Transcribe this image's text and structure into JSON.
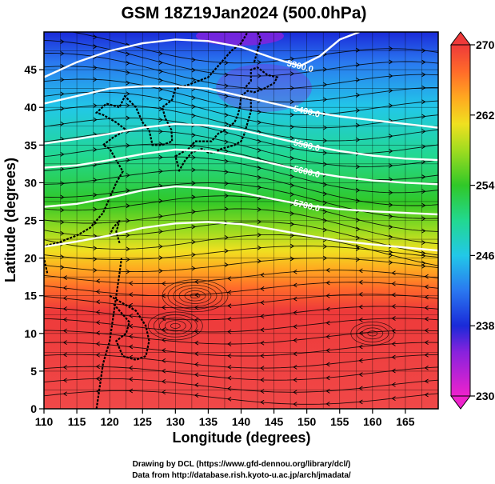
{
  "title": "GSM 18Z19Jan2024 (500.0hPa)",
  "xlabel": "Longitude (degrees)",
  "ylabel": "Latitude  (degrees)",
  "credits": [
    "Drawing by DCL (https://www.gfd-dennou.org/library/dcl/)",
    "Data from http://database.rish.kyoto-u.ac.jp/arch/jmadata/"
  ],
  "x_ticks": [
    110,
    115,
    120,
    125,
    130,
    135,
    140,
    145,
    150,
    155,
    160,
    165
  ],
  "y_ticks": [
    0,
    5,
    10,
    15,
    20,
    25,
    30,
    35,
    40,
    45
  ],
  "colorbar": {
    "ticks": [
      230,
      238,
      246,
      254,
      262,
      270
    ],
    "range": [
      230,
      270
    ],
    "stops": [
      {
        "v": 230,
        "c": "#ee22cc"
      },
      {
        "v": 235,
        "c": "#8822dd"
      },
      {
        "v": 238,
        "c": "#1a2ad8"
      },
      {
        "v": 242,
        "c": "#2a78f0"
      },
      {
        "v": 246,
        "c": "#22c8e8"
      },
      {
        "v": 250,
        "c": "#22d890"
      },
      {
        "v": 254,
        "c": "#30c828"
      },
      {
        "v": 258,
        "c": "#a0dc20"
      },
      {
        "v": 261,
        "c": "#f0e020"
      },
      {
        "v": 264,
        "c": "#ffa820"
      },
      {
        "v": 267,
        "c": "#ff6a2a"
      },
      {
        "v": 270,
        "c": "#ee3a3a"
      }
    ]
  },
  "contour_labels": [
    "5300.0",
    "5400.0",
    "5500.0",
    "5600.0",
    "5700.0"
  ],
  "map": {
    "lon_range": [
      110,
      170
    ],
    "lat_range": [
      0,
      50
    ],
    "contours": [
      {
        "label": "5300.0",
        "pts": [
          [
            110,
            44
          ],
          [
            115,
            46
          ],
          [
            120,
            47.5
          ],
          [
            125,
            48.5
          ],
          [
            130,
            49
          ],
          [
            135,
            48.8
          ],
          [
            140,
            48
          ],
          [
            145,
            46.5
          ],
          [
            149,
            45.5
          ],
          [
            152,
            46.8
          ],
          [
            155,
            49
          ],
          [
            158,
            50
          ]
        ]
      },
      {
        "label": "5400.0",
        "pts": [
          [
            110,
            40.5
          ],
          [
            115,
            41.5
          ],
          [
            120,
            42.5
          ],
          [
            125,
            42.8
          ],
          [
            130,
            42.8
          ],
          [
            135,
            42.5
          ],
          [
            140,
            41.5
          ],
          [
            145,
            40.5
          ],
          [
            150,
            39.5
          ],
          [
            155,
            38.8
          ],
          [
            160,
            38.3
          ],
          [
            165,
            37.8
          ],
          [
            170,
            37.3
          ]
        ]
      },
      {
        "label": "5500.0",
        "pts": [
          [
            110,
            35.2
          ],
          [
            115,
            35.8
          ],
          [
            120,
            36.5
          ],
          [
            125,
            37.3
          ],
          [
            130,
            37.8
          ],
          [
            135,
            37.6
          ],
          [
            140,
            37
          ],
          [
            145,
            36
          ],
          [
            150,
            35
          ],
          [
            155,
            34.2
          ],
          [
            160,
            33.6
          ],
          [
            165,
            33.2
          ],
          [
            170,
            33
          ]
        ]
      },
      {
        "label": "5600.0",
        "pts": [
          [
            110,
            32
          ],
          [
            115,
            32.3
          ],
          [
            120,
            33
          ],
          [
            125,
            33.8
          ],
          [
            130,
            34.4
          ],
          [
            135,
            34.2
          ],
          [
            140,
            33.5
          ],
          [
            145,
            32.5
          ],
          [
            150,
            31.5
          ],
          [
            155,
            30.8
          ],
          [
            160,
            30.3
          ],
          [
            165,
            30
          ],
          [
            170,
            29.8
          ]
        ]
      },
      {
        "label": "5700.0",
        "pts": [
          [
            110,
            26.8
          ],
          [
            115,
            27.2
          ],
          [
            120,
            28
          ],
          [
            125,
            29
          ],
          [
            130,
            29.5
          ],
          [
            135,
            29.3
          ],
          [
            140,
            28.7
          ],
          [
            145,
            27.8
          ],
          [
            150,
            27
          ],
          [
            155,
            26.5
          ],
          [
            160,
            26.2
          ],
          [
            165,
            26
          ],
          [
            170,
            25.8
          ]
        ]
      },
      {
        "label": "",
        "pts": [
          [
            110,
            21.5
          ],
          [
            115,
            22.2
          ],
          [
            120,
            23
          ],
          [
            125,
            24
          ],
          [
            130,
            24.6
          ],
          [
            135,
            24.8
          ],
          [
            140,
            24.5
          ],
          [
            145,
            23.8
          ],
          [
            150,
            23
          ],
          [
            155,
            22.3
          ],
          [
            160,
            21.8
          ],
          [
            165,
            21.4
          ],
          [
            170,
            21
          ]
        ]
      }
    ],
    "coastlines": [
      [
        [
          118,
          0
        ],
        [
          118.5,
          3
        ],
        [
          119,
          6
        ],
        [
          120,
          9
        ],
        [
          120.5,
          12
        ],
        [
          121,
          15
        ],
        [
          121.5,
          18
        ],
        [
          121.8,
          20
        ]
      ],
      [
        [
          121.5,
          22
        ],
        [
          121,
          23.5
        ],
        [
          121.5,
          25
        ],
        [
          120.5,
          24
        ],
        [
          120,
          23
        ]
      ],
      [
        [
          110.5,
          18
        ],
        [
          110,
          20
        ],
        [
          109.5,
          21.5
        ],
        [
          112,
          22
        ],
        [
          115,
          23
        ],
        [
          117,
          24
        ],
        [
          119,
          26
        ],
        [
          120,
          28
        ],
        [
          121,
          30
        ],
        [
          122,
          31.5
        ],
        [
          121,
          33
        ],
        [
          120,
          34.5
        ],
        [
          119,
          35
        ],
        [
          120.5,
          36
        ],
        [
          122.5,
          37
        ],
        [
          121,
          38
        ],
        [
          119,
          39
        ],
        [
          118,
          39.3
        ],
        [
          119.5,
          40.5
        ],
        [
          121.5,
          40
        ],
        [
          122.3,
          41.5
        ],
        [
          124,
          40
        ],
        [
          125,
          38
        ],
        [
          126,
          37
        ],
        [
          126.5,
          35
        ],
        [
          128,
          35
        ],
        [
          129.5,
          35.5
        ],
        [
          129.4,
          37
        ],
        [
          128.5,
          38.5
        ],
        [
          128,
          40
        ],
        [
          129.5,
          41
        ],
        [
          130,
          42.5
        ],
        [
          132,
          43
        ],
        [
          135,
          44
        ],
        [
          137,
          46
        ],
        [
          138.5,
          47.5
        ],
        [
          140,
          48.5
        ],
        [
          141,
          50
        ]
      ],
      [
        [
          130.5,
          31.5
        ],
        [
          131.5,
          33
        ],
        [
          132.5,
          34
        ],
        [
          134,
          34.5
        ],
        [
          135,
          34
        ],
        [
          136,
          34
        ],
        [
          137,
          34.5
        ],
        [
          139,
          35
        ],
        [
          140,
          35.5
        ],
        [
          140.5,
          36.5
        ],
        [
          141,
          38
        ],
        [
          141.5,
          39.5
        ],
        [
          141.5,
          41
        ],
        [
          140,
          41.5
        ],
        [
          139.8,
          40
        ],
        [
          139.5,
          39
        ],
        [
          139,
          38
        ],
        [
          137.5,
          37
        ],
        [
          136.5,
          36.5
        ],
        [
          135.5,
          35.5
        ],
        [
          133,
          35.5
        ],
        [
          132,
          34.5
        ],
        [
          131,
          34
        ],
        [
          130,
          33.5
        ],
        [
          130.5,
          32
        ]
      ],
      [
        [
          140,
          41.5
        ],
        [
          141,
          42.2
        ],
        [
          142,
          42
        ],
        [
          143.5,
          42.5
        ],
        [
          145,
          43.2
        ],
        [
          145.5,
          44
        ],
        [
          144,
          44.3
        ],
        [
          142.5,
          45.3
        ],
        [
          141.5,
          45
        ],
        [
          141.5,
          43.5
        ],
        [
          140.5,
          42.5
        ]
      ],
      [
        [
          142,
          46
        ],
        [
          142.5,
          47.5
        ],
        [
          143,
          49
        ],
        [
          142.5,
          50
        ]
      ],
      [
        [
          120,
          15
        ],
        [
          122,
          14
        ],
        [
          124,
          13
        ],
        [
          125.5,
          11
        ],
        [
          126,
          9
        ],
        [
          125.5,
          7
        ],
        [
          124,
          6.5
        ],
        [
          122,
          7
        ],
        [
          121,
          9
        ],
        [
          122.5,
          10
        ],
        [
          123,
          11.5
        ],
        [
          121.5,
          13
        ],
        [
          120.5,
          14
        ]
      ]
    ]
  }
}
